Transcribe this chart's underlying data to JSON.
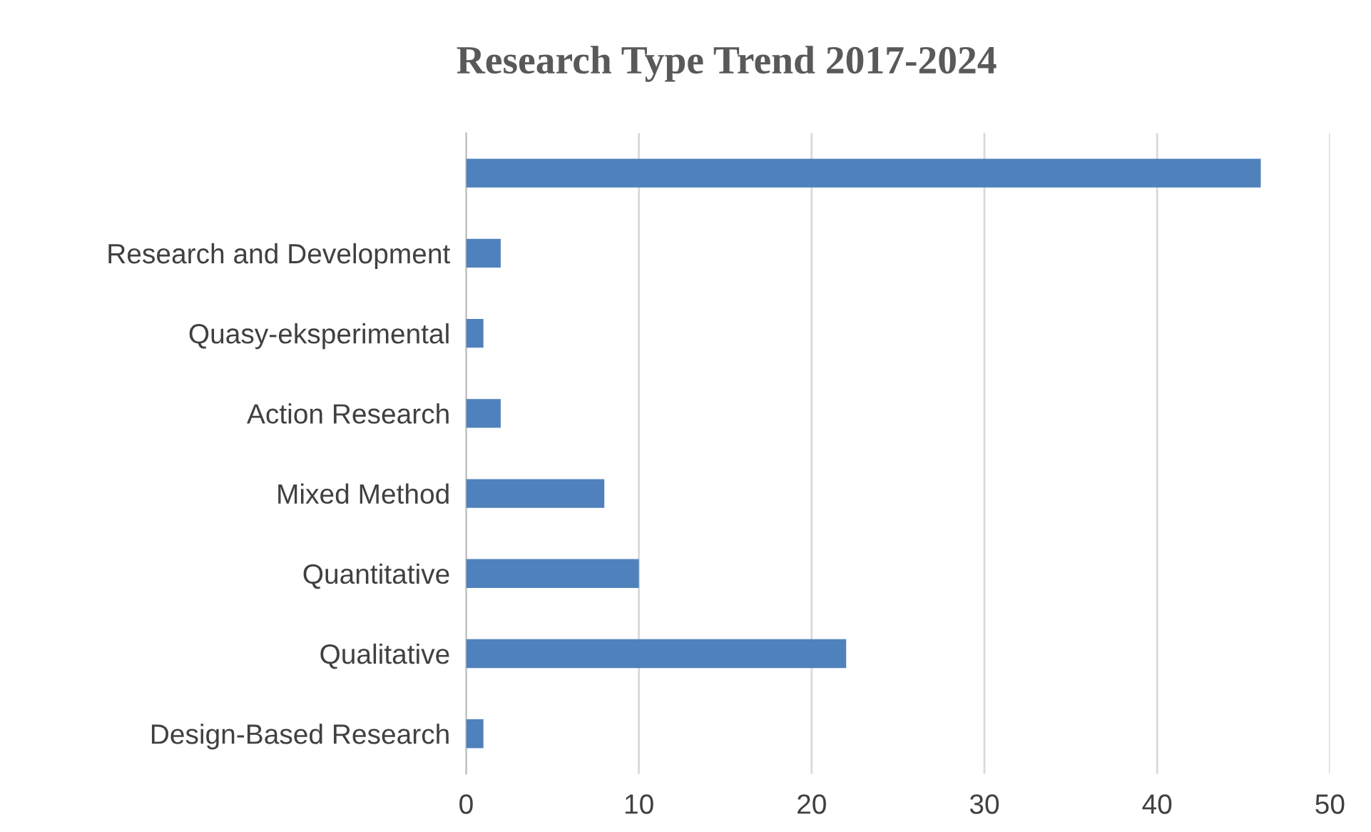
{
  "chart_data": {
    "type": "bar",
    "orientation": "horizontal",
    "title": "Research Type Trend 2017-2024",
    "categories": [
      null,
      "Research and Development",
      "Quasy-eksperimental",
      "Action Research",
      "Mixed Method",
      "Quantitative",
      "Qualitative",
      "Design-Based Research"
    ],
    "values": [
      46,
      2,
      1,
      2,
      8,
      10,
      22,
      1
    ],
    "color": "#4f81bd",
    "xlim": [
      0,
      50
    ],
    "xticks": [
      0,
      10,
      20,
      30,
      40,
      50
    ],
    "grid": "x",
    "legend": false
  }
}
